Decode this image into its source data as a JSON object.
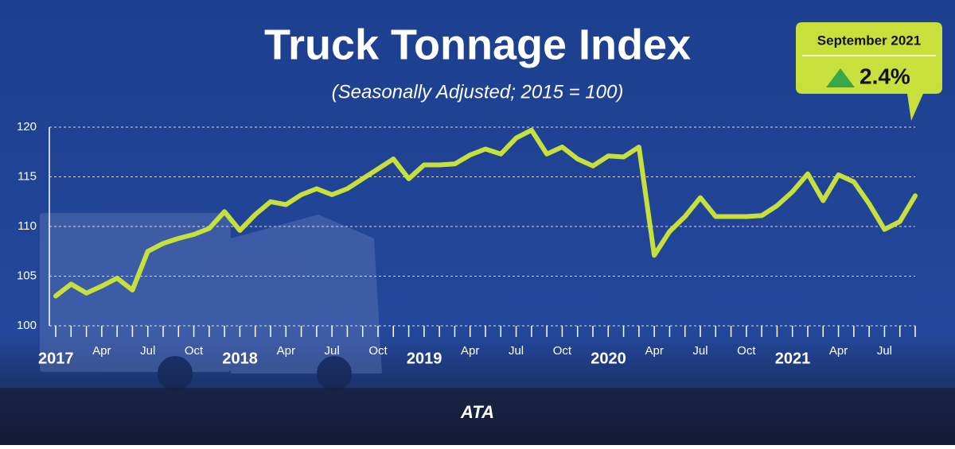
{
  "chart_data": {
    "type": "line",
    "title": "Truck Tonnage Index",
    "subtitle": "(Seasonally Adjusted; 2015 = 100)",
    "categories": [
      "2017",
      null,
      null,
      "Apr",
      null,
      null,
      "Jul",
      null,
      null,
      "Oct",
      null,
      null,
      "2018",
      null,
      null,
      "Apr",
      null,
      null,
      "Jul",
      null,
      null,
      "Oct",
      null,
      null,
      "2019",
      null,
      null,
      "Apr",
      null,
      null,
      "Jul",
      null,
      null,
      "Oct",
      null,
      null,
      "2020",
      null,
      null,
      "Apr",
      null,
      null,
      "Jul",
      null,
      null,
      "Oct",
      null,
      null,
      "2021",
      null,
      null,
      "Apr",
      null,
      null,
      "Jul",
      null,
      null
    ],
    "values": [
      103.0,
      104.2,
      103.3,
      104.0,
      104.8,
      103.6,
      107.5,
      108.3,
      108.8,
      109.2,
      109.8,
      111.5,
      109.6,
      111.2,
      112.5,
      112.2,
      113.2,
      113.8,
      113.2,
      113.8,
      114.8,
      115.8,
      116.8,
      114.8,
      116.2,
      116.2,
      116.3,
      117.2,
      117.8,
      117.3,
      118.9,
      119.7,
      117.3,
      118.0,
      116.8,
      116.1,
      117.1,
      117.0,
      118.0,
      107.1,
      109.5,
      111.0,
      112.9,
      111.0,
      111.0,
      111.0,
      111.1,
      112.1,
      113.5,
      115.3,
      112.6,
      115.2,
      114.5,
      112.3,
      109.7,
      110.5,
      113.1
    ],
    "color": "#c8e03c",
    "ylim": [
      100,
      120
    ],
    "yticks": [
      100,
      105,
      110,
      115,
      120
    ],
    "grid": true,
    "annotation": {
      "title": "September 2021",
      "change": "2.4%"
    },
    "logo": "ATA"
  }
}
